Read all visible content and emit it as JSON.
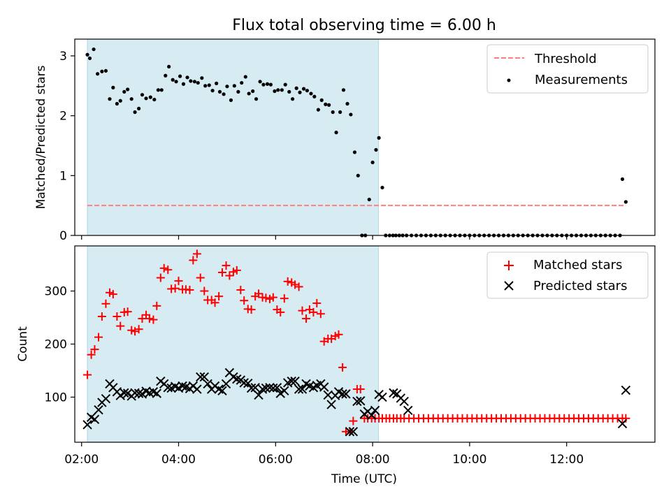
{
  "figure": {
    "title": "Flux total observing time = 6.00 h",
    "xlabel": "Time (UTC)",
    "x_ticks": [
      "02:00",
      "04:00",
      "06:00",
      "08:00",
      "10:00",
      "12:00"
    ]
  },
  "colors": {
    "span": "#add8e6",
    "threshold": "#ff7f7f",
    "measurement": "#000000",
    "matched": "#ff0000",
    "predicted": "#000000"
  },
  "chart_data": [
    {
      "type": "scatter",
      "panel": "top",
      "ylabel": "Matched/Predicted stars",
      "xlim": [
        1.86,
        13.82
      ],
      "ylim": [
        0,
        3.28
      ],
      "y_ticks": [
        "0",
        "1",
        "2",
        "3"
      ],
      "grid": false,
      "legend_position": "upper right",
      "legend": [
        "Threshold",
        "Measurements"
      ],
      "span": {
        "x0": 2.12,
        "x1": 8.12
      },
      "threshold": {
        "name": "Threshold",
        "x": [
          2.12,
          13.22
        ],
        "y": 0.5
      },
      "series": [
        {
          "name": "Measurements",
          "marker": "dot",
          "x": [
            2.12,
            2.17,
            2.25,
            2.33,
            2.42,
            2.5,
            2.58,
            2.65,
            2.73,
            2.8,
            2.88,
            2.95,
            3.03,
            3.1,
            3.18,
            3.25,
            3.33,
            3.42,
            3.5,
            3.58,
            3.65,
            3.73,
            3.8,
            3.88,
            3.95,
            4.03,
            4.1,
            4.18,
            4.25,
            4.33,
            4.4,
            4.48,
            4.55,
            4.63,
            4.7,
            4.78,
            4.85,
            4.93,
            5.0,
            5.08,
            5.15,
            5.23,
            5.3,
            5.38,
            5.45,
            5.53,
            5.6,
            5.68,
            5.75,
            5.83,
            5.9,
            5.98,
            6.05,
            6.13,
            6.2,
            6.28,
            6.35,
            6.43,
            6.5,
            6.58,
            6.65,
            6.73,
            6.8,
            6.88,
            6.95,
            7.03,
            7.1,
            7.18,
            7.25,
            7.33,
            7.4,
            7.48,
            7.55,
            7.63,
            7.7,
            7.78,
            7.85,
            7.93,
            8.0,
            8.07,
            8.13,
            8.2,
            8.27,
            8.35,
            8.42,
            8.48,
            8.55,
            8.62,
            8.7,
            8.8,
            8.9,
            9.0,
            9.1,
            9.2,
            9.3,
            9.4,
            9.5,
            9.6,
            9.7,
            9.8,
            9.9,
            10.0,
            10.1,
            10.2,
            10.3,
            10.4,
            10.5,
            10.6,
            10.7,
            10.8,
            10.9,
            11.0,
            11.1,
            11.2,
            11.3,
            11.4,
            11.5,
            11.6,
            11.7,
            11.8,
            11.9,
            12.0,
            12.1,
            12.2,
            12.3,
            12.4,
            12.5,
            12.6,
            12.7,
            12.8,
            12.9,
            13.0,
            13.1,
            13.15,
            13.22
          ],
          "y": [
            3.02,
            2.96,
            3.11,
            2.7,
            2.74,
            2.75,
            2.28,
            2.47,
            2.2,
            2.25,
            2.4,
            2.44,
            2.28,
            2.06,
            2.12,
            2.35,
            2.29,
            2.31,
            2.27,
            2.43,
            2.43,
            2.67,
            2.82,
            2.6,
            2.57,
            2.66,
            2.53,
            2.64,
            2.58,
            2.57,
            2.55,
            2.63,
            2.5,
            2.51,
            2.42,
            2.54,
            2.4,
            2.36,
            2.49,
            2.26,
            2.5,
            2.4,
            2.55,
            2.65,
            2.37,
            2.41,
            2.28,
            2.57,
            2.52,
            2.53,
            2.52,
            2.41,
            2.43,
            2.43,
            2.52,
            2.4,
            2.28,
            2.46,
            2.39,
            2.45,
            2.42,
            2.37,
            2.32,
            2.1,
            2.26,
            2.19,
            2.18,
            2.06,
            1.72,
            2.06,
            2.43,
            2.2,
            2.02,
            1.39,
            1.0,
            0.0,
            0.0,
            0.6,
            1.22,
            1.43,
            1.63,
            0.8,
            0.0,
            0.0,
            0.0,
            0.0,
            0.0,
            0.0,
            0.0,
            0.0,
            0.0,
            0.0,
            0.0,
            0.0,
            0.0,
            0.0,
            0.0,
            0.0,
            0.0,
            0.0,
            0.0,
            0.0,
            0.0,
            0.0,
            0.0,
            0.0,
            0.0,
            0.0,
            0.0,
            0.0,
            0.0,
            0.0,
            0.0,
            0.0,
            0.0,
            0.0,
            0.0,
            0.0,
            0.0,
            0.0,
            0.0,
            0.0,
            0.0,
            0.0,
            0.0,
            0.0,
            0.0,
            0.0,
            0.0,
            0.0,
            0.0,
            0.0,
            0.0,
            0.94,
            0.56
          ]
        }
      ]
    },
    {
      "type": "scatter",
      "panel": "bottom",
      "ylabel": "Count",
      "xlim": [
        1.86,
        13.82
      ],
      "ylim": [
        15,
        385
      ],
      "y_ticks": [
        "100",
        "200",
        "300"
      ],
      "grid": false,
      "legend_position": "upper right",
      "legend": [
        "Matched stars",
        "Predicted stars"
      ],
      "span": {
        "x0": 2.12,
        "x1": 8.12
      },
      "series": [
        {
          "name": "Matched stars",
          "marker": "plus",
          "x": [
            2.12,
            2.2,
            2.27,
            2.35,
            2.42,
            2.5,
            2.58,
            2.65,
            2.73,
            2.8,
            2.88,
            2.95,
            3.03,
            3.1,
            3.18,
            3.25,
            3.33,
            3.4,
            3.48,
            3.55,
            3.63,
            3.7,
            3.78,
            3.85,
            3.93,
            4.0,
            4.08,
            4.15,
            4.23,
            4.3,
            4.38,
            4.45,
            4.53,
            4.6,
            4.68,
            4.75,
            4.83,
            4.9,
            4.98,
            5.05,
            5.13,
            5.2,
            5.28,
            5.35,
            5.43,
            5.5,
            5.58,
            5.65,
            5.73,
            5.8,
            5.88,
            5.95,
            6.03,
            6.1,
            6.18,
            6.25,
            6.33,
            6.4,
            6.48,
            6.55,
            6.63,
            6.7,
            6.78,
            6.85,
            6.93,
            7.0,
            7.08,
            7.15,
            7.23,
            7.3,
            7.38,
            7.45,
            7.53,
            7.6,
            7.68,
            7.75,
            7.83,
            7.9,
            7.98,
            8.05,
            8.13,
            8.2,
            8.28,
            8.35,
            8.43,
            8.5,
            8.58,
            8.65,
            8.75,
            8.85,
            8.95,
            9.05,
            9.15,
            9.25,
            9.35,
            9.45,
            9.55,
            9.65,
            9.75,
            9.85,
            9.95,
            10.05,
            10.15,
            10.25,
            10.35,
            10.45,
            10.55,
            10.65,
            10.75,
            10.85,
            10.95,
            11.05,
            11.15,
            11.25,
            11.35,
            11.45,
            11.55,
            11.65,
            11.75,
            11.85,
            11.95,
            12.05,
            12.15,
            12.25,
            12.35,
            12.45,
            12.55,
            12.65,
            12.75,
            12.85,
            12.95,
            13.05,
            13.15,
            13.22
          ],
          "y": [
            142,
            180,
            190,
            213,
            252,
            276,
            297,
            294,
            252,
            234,
            260,
            261,
            226,
            224,
            228,
            248,
            255,
            248,
            246,
            272,
            325,
            343,
            340,
            304,
            305,
            319,
            303,
            303,
            302,
            358,
            370,
            325,
            300,
            283,
            283,
            278,
            290,
            335,
            348,
            329,
            336,
            339,
            302,
            282,
            266,
            265,
            290,
            295,
            288,
            287,
            285,
            288,
            265,
            260,
            286,
            318,
            316,
            312,
            308,
            263,
            248,
            265,
            260,
            277,
            257,
            205,
            210,
            210,
            215,
            218,
            156,
            35,
            35,
            55,
            115,
            115,
            60,
            60,
            60,
            60,
            60,
            60,
            60,
            60,
            60,
            60,
            60,
            60,
            60,
            60,
            60,
            60,
            60,
            60,
            60,
            60,
            60,
            60,
            60,
            60,
            60,
            60,
            60,
            60,
            60,
            60,
            60,
            60,
            60,
            60,
            60,
            60,
            60,
            60,
            60,
            60,
            60,
            60,
            60,
            60,
            60,
            60,
            60,
            60,
            60,
            60,
            60,
            60,
            60,
            60,
            60,
            60,
            60,
            60
          ]
        },
        {
          "name": "Predicted stars",
          "marker": "x",
          "x": [
            2.12,
            2.2,
            2.27,
            2.35,
            2.42,
            2.5,
            2.58,
            2.65,
            2.73,
            2.8,
            2.88,
            2.95,
            3.03,
            3.1,
            3.18,
            3.25,
            3.33,
            3.4,
            3.48,
            3.55,
            3.63,
            3.7,
            3.78,
            3.85,
            3.93,
            4.0,
            4.08,
            4.15,
            4.23,
            4.3,
            4.38,
            4.45,
            4.53,
            4.6,
            4.68,
            4.75,
            4.83,
            4.9,
            4.98,
            5.05,
            5.13,
            5.2,
            5.28,
            5.35,
            5.43,
            5.5,
            5.58,
            5.65,
            5.73,
            5.8,
            5.88,
            5.95,
            6.03,
            6.1,
            6.18,
            6.25,
            6.33,
            6.4,
            6.48,
            6.55,
            6.63,
            6.7,
            6.78,
            6.85,
            6.93,
            7.0,
            7.08,
            7.15,
            7.23,
            7.3,
            7.38,
            7.45,
            7.53,
            7.6,
            7.68,
            7.75,
            7.83,
            7.9,
            7.98,
            8.05,
            8.13,
            8.2,
            8.43,
            8.5,
            8.58,
            8.65,
            8.73,
            13.15,
            13.22
          ],
          "y": [
            48,
            62,
            58,
            76,
            90,
            97,
            125,
            118,
            110,
            103,
            108,
            107,
            102,
            108,
            107,
            106,
            111,
            108,
            110,
            107,
            130,
            125,
            118,
            117,
            120,
            117,
            121,
            119,
            116,
            121,
            115,
            138,
            138,
            125,
            115,
            121,
            115,
            112,
            125,
            146,
            138,
            134,
            132,
            127,
            126,
            117,
            118,
            104,
            115,
            117,
            118,
            117,
            118,
            107,
            112,
            127,
            130,
            130,
            115,
            115,
            125,
            121,
            118,
            122,
            125,
            119,
            104,
            86,
            103,
            110,
            106,
            106,
            35,
            35,
            92,
            93,
            68,
            73,
            66,
            75,
            105,
            100,
            108,
            106,
            98,
            92,
            75,
            50,
            113
          ]
        }
      ]
    }
  ]
}
